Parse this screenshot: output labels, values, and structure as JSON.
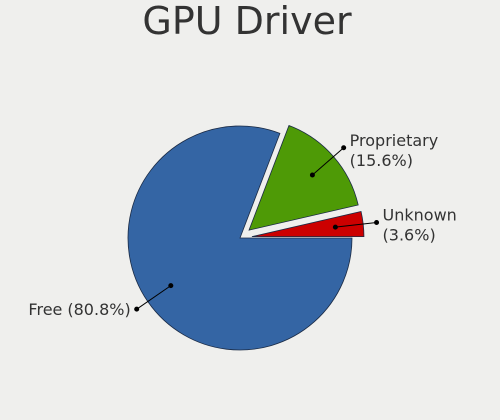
{
  "chart_data": {
    "type": "pie",
    "title": "GPU Driver",
    "categories": [
      "Free",
      "Proprietary",
      "Unknown"
    ],
    "values": [
      80.8,
      15.6,
      3.6
    ],
    "value_labels": [
      "(80.8%)",
      "(15.6%)",
      "(3.6%)"
    ],
    "colors": [
      "#3465a4",
      "#4e9a06",
      "#cc0000"
    ],
    "explode": [
      false,
      true,
      true
    ]
  }
}
